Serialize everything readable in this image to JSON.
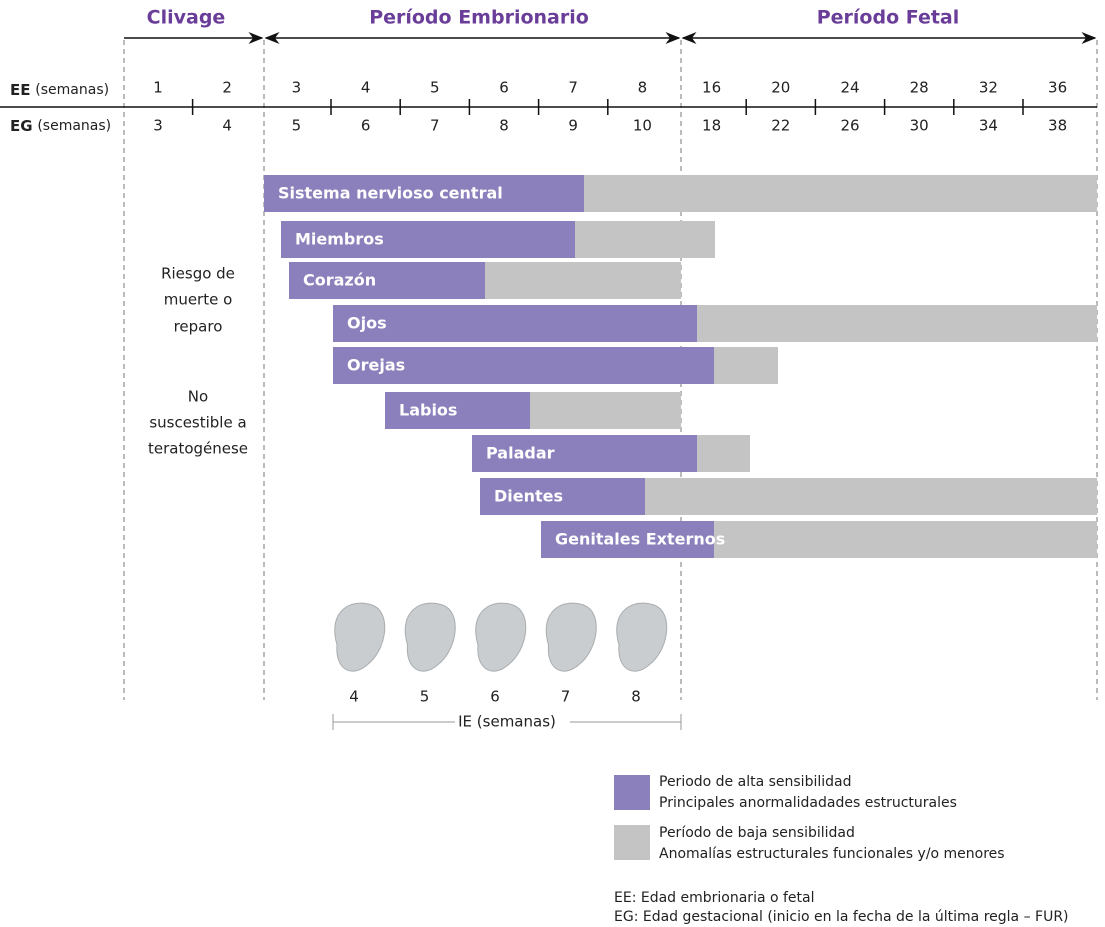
{
  "header": {
    "phases": [
      "Clivage",
      "Período Embrionario",
      "Período Fetal"
    ]
  },
  "scale": {
    "ee_label": "EE",
    "ee_unit": "(semanas)",
    "eg_label": "EG",
    "eg_unit": "(semanas)",
    "ee": [
      1,
      2,
      3,
      4,
      5,
      6,
      7,
      8,
      16,
      20,
      24,
      28,
      32,
      36
    ],
    "eg": [
      3,
      4,
      5,
      6,
      7,
      8,
      9,
      10,
      18,
      22,
      26,
      30,
      34,
      38
    ]
  },
  "side_notes": [
    "Riesgo de",
    "muerte o",
    "reparo",
    "No",
    "suscestible a",
    "teratogénese"
  ],
  "organs": [
    "Sistema nervioso central",
    "Miembros",
    "Corazón",
    "Ojos",
    "Orejas",
    "Labios",
    "Paladar",
    "Dientes",
    "Genitales Externos"
  ],
  "embryo": {
    "weeks": [
      4,
      5,
      6,
      7,
      8
    ],
    "axis_label": "IE (semanas)"
  },
  "legend": [
    {
      "title": "Periodo de alta sensibilidad",
      "subtitle": "Principales anormalidadades estructurales"
    },
    {
      "title": "Período de baja sensibilidad",
      "subtitle": "Anomalías estructurales funcionales y/o menores"
    }
  ],
  "footnotes": [
    "EE: Edad embrionaria o fetal",
    "EG: Edad gestacional (inicio en la fecha de la última regla – FUR)"
  ]
}
